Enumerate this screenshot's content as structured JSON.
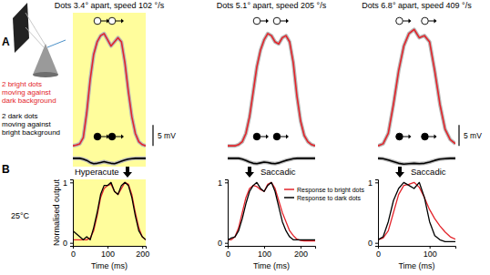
{
  "chart_data": [
    {
      "type": "line",
      "title": "Dots 3.4° apart, speed 102 °/s",
      "annotations": [
        "A"
      ],
      "legend": "left",
      "tick_labels": false,
      "xlim": [
        0,
        210
      ],
      "ylim": [
        -5,
        32
      ],
      "scale_bar": {
        "value": 5,
        "label": "5 mV"
      },
      "x": [
        0,
        10,
        20,
        30,
        40,
        50,
        60,
        70,
        80,
        90,
        100,
        110,
        120,
        130,
        140,
        150,
        160,
        170,
        180,
        190,
        200,
        210
      ],
      "series": [
        {
          "name": "2 bright dots moving against dark background",
          "color": "#e3242b",
          "values": [
            0,
            0.2,
            0.5,
            2,
            8,
            16,
            22,
            25,
            26.5,
            27,
            25.5,
            24,
            25,
            26,
            25,
            20,
            13,
            7,
            3,
            1,
            0.3,
            0
          ]
        },
        {
          "name": "2 dark dots moving against bright background",
          "color": "#000000",
          "values": [
            -3,
            -3,
            -3,
            -3.2,
            -3.5,
            -4,
            -4.3,
            -4.2,
            -4,
            -3.8,
            -4,
            -4.2,
            -4.3,
            -4,
            -3.7,
            -3.4,
            -3.2,
            -3.1,
            -3,
            -3,
            -3,
            -3
          ]
        }
      ]
    },
    {
      "type": "line",
      "title": "Dots 5.1° apart, speed 205 °/s",
      "tick_labels": false,
      "xlim": [
        0,
        240
      ],
      "ylim": [
        -5,
        32
      ],
      "x": [
        0,
        10,
        20,
        30,
        40,
        50,
        60,
        70,
        80,
        90,
        100,
        110,
        120,
        130,
        140,
        150,
        160,
        170,
        180,
        190,
        200,
        210,
        220,
        230,
        240
      ],
      "series": [
        {
          "color": "#e3242b",
          "values": [
            0,
            0,
            0,
            0.3,
            1,
            3,
            7,
            13,
            19,
            23,
            25.5,
            27,
            26.5,
            25,
            24.5,
            26,
            26.5,
            25,
            20,
            12,
            6,
            2.5,
            1,
            0.3,
            0
          ]
        },
        {
          "color": "#000000",
          "values": [
            -3,
            -3,
            -3,
            -3,
            -3.2,
            -3.5,
            -3.9,
            -4.2,
            -4.3,
            -4.1,
            -3.9,
            -4,
            -4.2,
            -4.3,
            -4.1,
            -3.8,
            -3.5,
            -3.3,
            -3.1,
            -3,
            -3,
            -3,
            -3,
            -3,
            -3
          ]
        }
      ]
    },
    {
      "type": "line",
      "title": "Dots 6.8° apart, speed 409 °/s",
      "tick_labels": false,
      "xlim": [
        0,
        150
      ],
      "ylim": [
        -5,
        32
      ],
      "scale_bar": {
        "value": 5,
        "label": "5 mV"
      },
      "x": [
        0,
        10,
        20,
        30,
        40,
        50,
        60,
        70,
        80,
        90,
        100,
        110,
        120,
        130,
        140,
        150
      ],
      "series": [
        {
          "color": "#e3242b",
          "values": [
            0,
            0.5,
            3,
            10,
            18,
            24,
            27,
            28,
            26,
            26.5,
            25,
            18,
            10,
            4,
            1.5,
            0.5
          ]
        },
        {
          "color": "#000000",
          "values": [
            -3,
            -3.1,
            -3.4,
            -3.8,
            -4.2,
            -4.4,
            -4.3,
            -4.2,
            -4.3,
            -4.2,
            -3.9,
            -3.5,
            -3.2,
            -3.1,
            -3,
            -3
          ]
        }
      ]
    },
    {
      "type": "line",
      "title": "Hyperacute",
      "annotations": [
        "B",
        "25°C"
      ],
      "x_label": "Time (ms)",
      "y_label": "Normalised output",
      "xlim": [
        0,
        210
      ],
      "ylim": [
        -0.05,
        1.05
      ],
      "xticks": [
        0,
        100,
        200
      ],
      "yticks": [
        0,
        1
      ],
      "x": [
        0,
        10,
        20,
        30,
        40,
        50,
        60,
        70,
        80,
        90,
        100,
        110,
        120,
        130,
        140,
        150,
        160,
        170,
        180,
        190,
        200,
        210
      ],
      "series": [
        {
          "color": "#e3242b",
          "values": [
            0.05,
            0.05,
            0.05,
            0.05,
            0.05,
            0.08,
            0.2,
            0.45,
            0.75,
            0.9,
            0.95,
            0.97,
            0.85,
            0.8,
            0.9,
            1,
            0.97,
            0.8,
            0.5,
            0.25,
            0.1,
            0.05
          ]
        },
        {
          "color": "#000000",
          "values": [
            0.2,
            0.15,
            0.1,
            0.05,
            0.1,
            0.05,
            0.25,
            0.5,
            0.8,
            0.95,
            0.95,
            1,
            0.85,
            0.8,
            0.95,
            1,
            0.95,
            0.75,
            0.45,
            0.2,
            0.1,
            0.05
          ]
        }
      ]
    },
    {
      "type": "line",
      "title": "Saccadic",
      "x_label": "Time (ms)",
      "legend": "upper right",
      "xlim": [
        0,
        240
      ],
      "ylim": [
        -0.05,
        1.05
      ],
      "xticks": [
        0,
        100,
        200
      ],
      "yticks": [
        0,
        1
      ],
      "x": [
        0,
        10,
        20,
        30,
        40,
        50,
        60,
        70,
        80,
        90,
        100,
        110,
        120,
        130,
        140,
        150,
        160,
        170,
        180,
        190,
        200,
        210,
        220,
        230,
        240
      ],
      "series": [
        {
          "name": "Response to bright dots",
          "color": "#e3242b",
          "values": [
            0.05,
            0.05,
            0.1,
            0.25,
            0.5,
            0.75,
            0.9,
            0.95,
            0.93,
            0.88,
            0.85,
            0.97,
            1,
            0.9,
            0.7,
            0.5,
            0.35,
            0.2,
            0.12,
            0.06,
            0.04,
            0.03,
            0.03,
            0.03,
            0.03
          ]
        },
        {
          "name": "Response to dark dots",
          "color": "#000000",
          "values": [
            0.05,
            0.08,
            0.1,
            0.2,
            0.4,
            0.65,
            0.85,
            0.95,
            1,
            0.9,
            0.85,
            0.95,
            1,
            0.85,
            0.6,
            0.35,
            0.2,
            0.1,
            0.05,
            0.05,
            0.05,
            0.05,
            0.05,
            0.05,
            0.05
          ]
        }
      ]
    },
    {
      "type": "line",
      "title": "Saccadic",
      "x_label": "Time (ms)",
      "xlim": [
        0,
        150
      ],
      "ylim": [
        -0.05,
        1.05
      ],
      "xticks": [
        0,
        100
      ],
      "yticks": [
        0,
        1
      ],
      "x": [
        0,
        10,
        20,
        30,
        40,
        50,
        60,
        70,
        80,
        90,
        100,
        110,
        120,
        130,
        140,
        150
      ],
      "series": [
        {
          "color": "#e3242b",
          "values": [
            0.05,
            0.08,
            0.2,
            0.5,
            0.8,
            0.95,
            0.97,
            1,
            0.92,
            0.75,
            0.55,
            0.4,
            0.28,
            0.18,
            0.1,
            0.06
          ]
        },
        {
          "color": "#000000",
          "values": [
            0.05,
            0.1,
            0.35,
            0.7,
            0.9,
            1,
            0.95,
            0.9,
            1,
            0.75,
            0.35,
            0.12,
            0.05,
            0.02,
            0.02,
            0.02
          ]
        }
      ]
    }
  ]
}
